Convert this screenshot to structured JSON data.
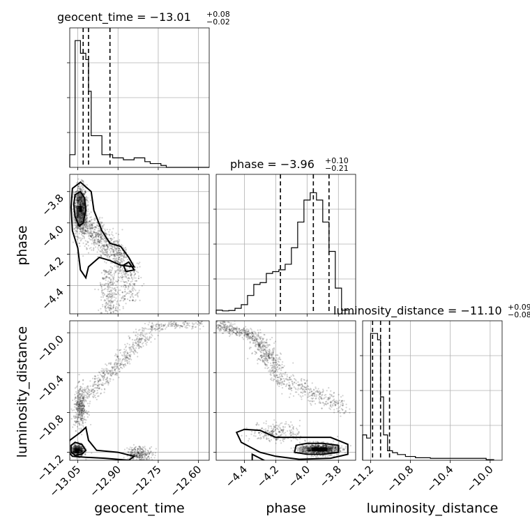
{
  "chart_data": {
    "type": "corner",
    "parameters": [
      {
        "name": "geocent_time",
        "title_value": "−13.01",
        "title_plus": "+0.08",
        "title_minus": "−0.02",
        "quantiles": [
          -13.03,
          -13.01,
          -12.93
        ],
        "range": [
          -13.08,
          -12.56
        ],
        "ticks": [
          -13.05,
          -12.9,
          -12.75,
          -12.6
        ],
        "tick_labels": [
          "−13.05",
          "−12.90",
          "−12.75",
          "−12.60"
        ]
      },
      {
        "name": "phase",
        "title_value": "−3.96",
        "title_plus": "+0.10",
        "title_minus": "−0.21",
        "quantiles": [
          -4.17,
          -3.96,
          -3.86
        ],
        "range": [
          -4.58,
          -3.69
        ],
        "ticks": [
          -4.4,
          -4.2,
          -4.0,
          -3.8
        ],
        "tick_labels": [
          "−4.4",
          "−4.2",
          "−4.0",
          "−3.8"
        ]
      },
      {
        "name": "luminosity_distance",
        "title_value": "−11.10",
        "title_plus": "+0.09",
        "title_minus": "−0.08",
        "quantiles": [
          -11.18,
          -11.1,
          -11.01
        ],
        "range": [
          -11.28,
          -9.88
        ],
        "ticks": [
          -11.2,
          -10.8,
          -10.4,
          -10.0
        ],
        "tick_labels": [
          "−11.2",
          "−10.8",
          "−10.4",
          "−10.0"
        ]
      }
    ],
    "histograms": {
      "geocent_time": {
        "edges": [
          -13.08,
          -13.06,
          -13.05,
          -13.04,
          -13.03,
          -13.02,
          -13.01,
          -13.0,
          -12.98,
          -12.96,
          -12.94,
          -12.92,
          -12.9,
          -12.88,
          -12.86,
          -12.84,
          -12.82,
          -12.8,
          -12.78,
          -12.76,
          -12.74,
          -12.72,
          -12.56
        ],
        "counts": [
          2,
          20,
          20,
          18,
          18,
          17,
          12,
          5,
          5,
          2,
          2,
          1.5,
          1.5,
          1.2,
          1.2,
          1.5,
          1.5,
          0.9,
          0.6,
          0.6,
          0.3,
          0
        ],
        "ymax": 22
      },
      "phase": {
        "edges": [
          -4.58,
          -4.54,
          -4.5,
          -4.46,
          -4.42,
          -4.38,
          -4.34,
          -4.3,
          -4.26,
          -4.22,
          -4.18,
          -4.14,
          -4.1,
          -4.06,
          -4.02,
          -3.98,
          -3.94,
          -3.9,
          -3.86,
          -3.82,
          -3.78,
          -3.74
        ],
        "counts": [
          1,
          0.8,
          0.9,
          1.5,
          2.5,
          5,
          8,
          8.5,
          11,
          11.5,
          12,
          13.5,
          18,
          25,
          31,
          33,
          31,
          25,
          17,
          7,
          1
        ],
        "ymax": 38
      },
      "luminosity_distance": {
        "edges": [
          -11.28,
          -11.24,
          -11.2,
          -11.17,
          -11.13,
          -11.1,
          -11.07,
          -11.03,
          -10.98,
          -10.93,
          -10.85,
          -10.75,
          -10.6,
          -10.4,
          -10.2,
          -10.04,
          -9.96
        ],
        "counts": [
          4,
          3.5,
          20,
          20,
          19,
          10,
          4,
          1.5,
          1.2,
          0.9,
          0.6,
          0.4,
          0.3,
          0.3,
          0.3,
          0.1
        ],
        "ymax": 22
      }
    },
    "grid": true
  }
}
